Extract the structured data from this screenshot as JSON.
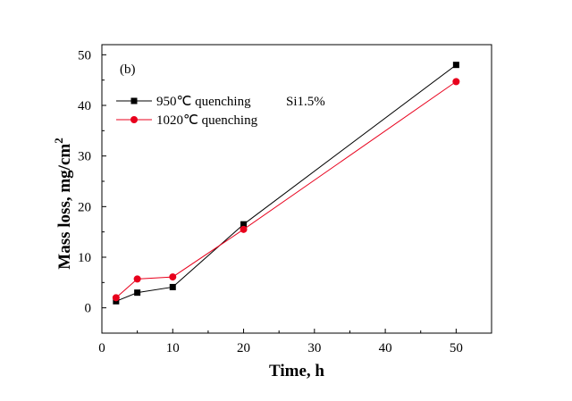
{
  "chart_data": {
    "type": "line",
    "panel_label": "(b)",
    "annotation": "Si1.5%",
    "xlabel": "Time, h",
    "ylabel_main": "Mass loss, mg/cm",
    "ylabel_sup": "2",
    "xlim": [
      0,
      55
    ],
    "ylim": [
      -5,
      52
    ],
    "xticks": [
      0,
      10,
      20,
      30,
      40,
      50
    ],
    "yticks": [
      0,
      10,
      20,
      30,
      40,
      50
    ],
    "grid": false,
    "legend_position": "top-left",
    "series": [
      {
        "name": "950℃ quenching",
        "marker": "square",
        "color": "#000000",
        "x": [
          2,
          5,
          10,
          20,
          50
        ],
        "y": [
          1.3,
          3.0,
          4.1,
          16.5,
          48.0
        ]
      },
      {
        "name": "1020℃ quenching",
        "marker": "circle",
        "color": "#e8001c",
        "x": [
          2,
          5,
          10,
          20,
          50
        ],
        "y": [
          2.0,
          5.7,
          6.1,
          15.5,
          44.7
        ]
      }
    ]
  }
}
